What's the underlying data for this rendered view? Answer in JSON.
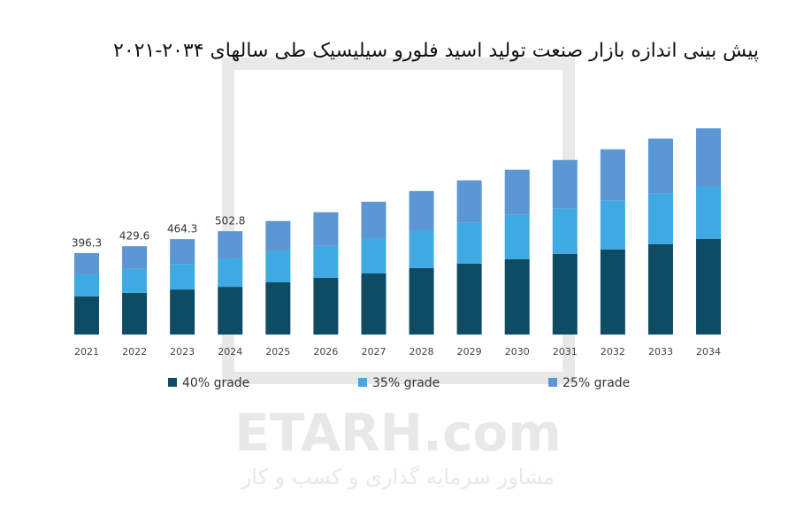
{
  "chart_data": {
    "type": "stacked_bar",
    "title": "پیش بینی اندازه بازار صنعت تولید اسید فلورو سیلیسیک طی سالهای ۲۰۳۴-۲۰۲۱",
    "categories": [
      "2021",
      "2022",
      "2023",
      "2024",
      "2025",
      "2026",
      "2027",
      "2028",
      "2029",
      "2030",
      "2031",
      "2032",
      "2033",
      "2034"
    ],
    "series": [
      {
        "name": "40% grade",
        "color": "#0e4c64",
        "values": [
          185,
          203,
          219,
          232,
          254,
          276,
          297,
          323,
          345,
          366,
          392,
          414,
          440,
          465
        ]
      },
      {
        "name": "35% grade",
        "color": "#3ea9e2",
        "values": [
          108,
          116,
          124,
          138,
          151,
          155,
          172,
          185,
          198,
          216,
          220,
          237,
          246,
          254
        ]
      },
      {
        "name": "25% grade",
        "color": "#5b97d3",
        "values": [
          103.3,
          110.6,
          121.3,
          132.8,
          147,
          164,
          177,
          190,
          207,
          220,
          237,
          250,
          267,
          284
        ]
      }
    ],
    "total_labels": [
      396.3,
      429.6,
      464.3,
      502.8
    ],
    "legend": "bottom",
    "watermark": {
      "brand": "ETARH.com",
      "tagline": "مشاور سرمایه گذاری و کسب و کار"
    }
  }
}
